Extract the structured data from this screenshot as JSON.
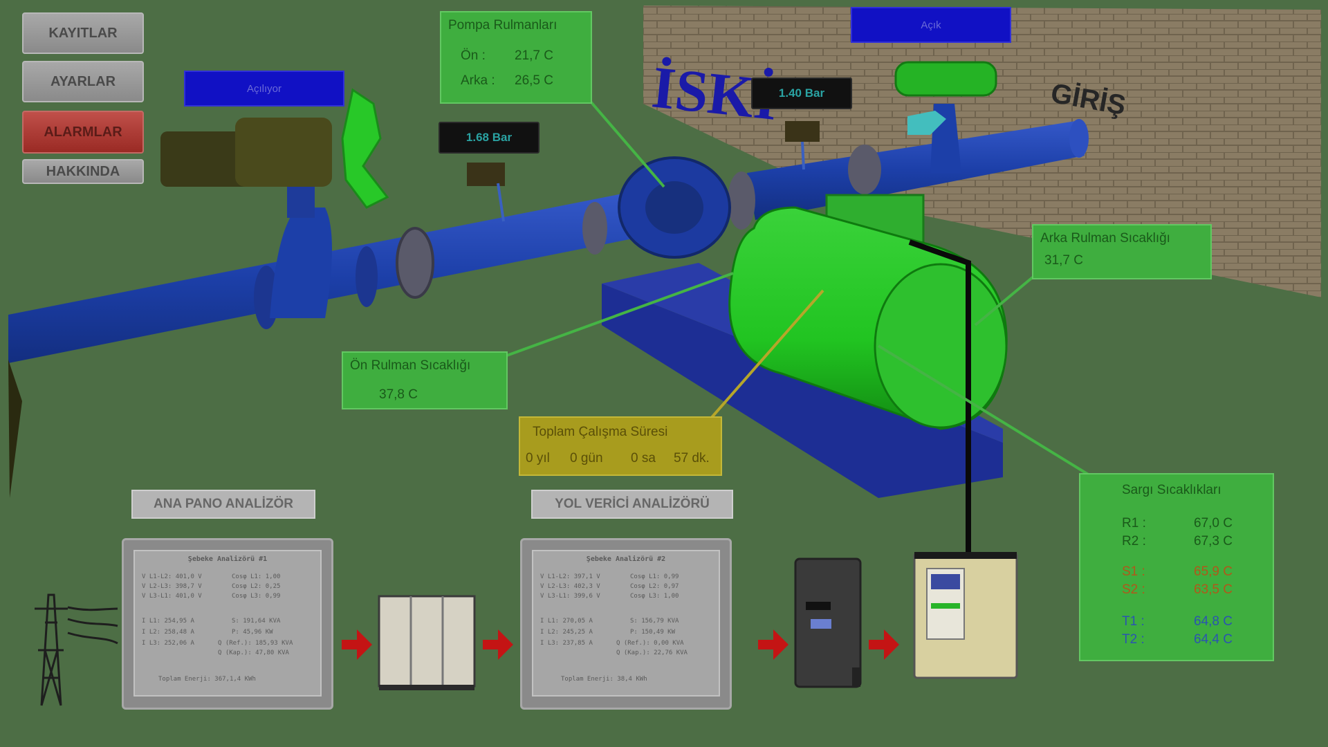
{
  "menu": {
    "records_label": "KAYITLAR",
    "settings_label": "AYARLAR",
    "alarms_label": "ALARMLAR",
    "about_label": "HAKKINDA"
  },
  "valves": {
    "left_status": "Açılıyor",
    "right_status": "Açık"
  },
  "pressure": {
    "left": "1.68 Bar",
    "right": "1.40 Bar"
  },
  "wall": {
    "brand": "İSKİ",
    "entry_label": "GİRİŞ"
  },
  "pump_bearings": {
    "title": "Pompa Rulmanları",
    "front_label": "Ön :",
    "front_value": "21,7 C",
    "rear_label": "Arka :",
    "rear_value": "26,5 C"
  },
  "rear_bearing": {
    "title": "Arka Rulman Sıcaklığı",
    "value": "31,7 C"
  },
  "front_bearing": {
    "title": "Ön Rulman Sıcaklığı",
    "value": "37,8 C"
  },
  "runtime": {
    "title": "Toplam Çalışma Süresi",
    "years": "0 yıl",
    "days": "0 gün",
    "hours": "0 sa",
    "minutes": "57 dk."
  },
  "winding": {
    "title": "Sargı Sıcaklıkları",
    "rows": [
      {
        "label": "R1 :",
        "value": "67,0 C"
      },
      {
        "label": "R2 :",
        "value": "67,3 C"
      },
      {
        "label": "S1 :",
        "value": "65,9 C"
      },
      {
        "label": "S2 :",
        "value": "63,5 C"
      },
      {
        "label": "T1 :",
        "value": "64,8 C"
      },
      {
        "label": "T2 :",
        "value": "64,4 C"
      }
    ]
  },
  "sections": {
    "main_panel": "ANA PANO ANALİZÖR",
    "soft_starter": "YOL VERİCİ ANALİZÖRÜ"
  },
  "analyzer1": {
    "header": "Şebeke Analizörü #1",
    "v_rows": [
      "V L1-L2: 401,0 V",
      "V L2-L3: 398,7 V",
      "V L3-L1: 401,0 V"
    ],
    "pf_rows": [
      "Cosφ L1: 1,00",
      "Cosφ L2: 0,25",
      "Cosφ L3: 0,99"
    ],
    "i_rows": [
      "I L1: 254,95 A",
      "I L2: 258,48 A",
      "I L3: 252,06 A"
    ],
    "p_rows": [
      "S: 191,64 KVA",
      "P: 45,96 KW",
      "Q (Ref.): 185,93 KVA",
      "Q (Kap.): 47,80 KVA"
    ],
    "total": "Toplam Enerji: 367,1,4 KWh"
  },
  "analyzer2": {
    "header": "Şebeke Analizörü #2",
    "v_rows": [
      "V L1-L2: 397,1 V",
      "V L2-L3: 402,3 V",
      "V L3-L1: 399,6 V"
    ],
    "pf_rows": [
      "Cosφ L1: 0,99",
      "Cosφ L2: 0,97",
      "Cosφ L3: 1,00"
    ],
    "i_rows": [
      "I L1: 270,05 A",
      "I L2: 245,25 A",
      "I L3: 237,85 A"
    ],
    "p_rows": [
      "S: 156,79 KVA",
      "P: 150,49 KW",
      "Q (Ref.): 0,00 KVA",
      "Q (Kap.): 22,76 KVA"
    ],
    "total": "Toplam Enerji: 38,4 KWh"
  },
  "colors": {
    "background": "#4d6e45",
    "pipe": "#1c3fa8",
    "motor": "#21c421",
    "panel_green": "#3fae3f",
    "panel_yellow": "#a89c1e",
    "status_blue": "#1111c4",
    "arrow_red": "#c41414"
  }
}
